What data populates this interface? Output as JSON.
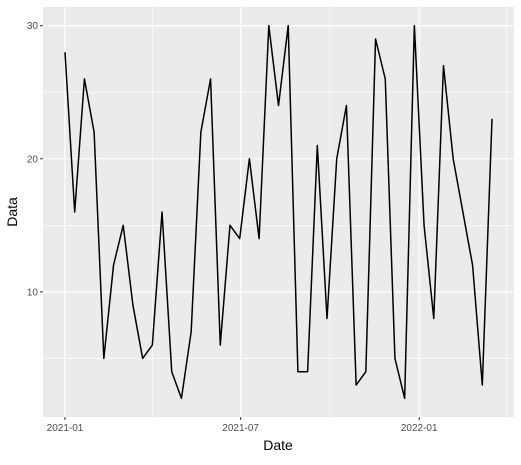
{
  "chart_data": {
    "type": "line",
    "title": "",
    "xlabel": "Date",
    "ylabel": "Data",
    "x_tick_labels": [
      "2021-01",
      "2021-07",
      "2022-01"
    ],
    "y_tick_labels": [
      "10",
      "20",
      "30"
    ],
    "ylim": [
      0.6,
      31.4
    ],
    "grid": true,
    "legend": "none",
    "colors": {
      "panel_background": "#EBEBEB",
      "grid": "#FFFFFF",
      "line": "#000000"
    },
    "series": [
      {
        "values": [
          28,
          16,
          26,
          22,
          5,
          12,
          15,
          9,
          5,
          6,
          16,
          4,
          2,
          7,
          22,
          26,
          6,
          15,
          14,
          20,
          14,
          30,
          24,
          30,
          4,
          4,
          21,
          8,
          20,
          24,
          3,
          4,
          29,
          26,
          5,
          2,
          30,
          15,
          8,
          27,
          20,
          12,
          3,
          23
        ],
        "x": [
          "2021-01-01",
          "2021-01-11",
          "2021-01-21",
          "2021-01-31",
          "2021-02-10",
          "2021-02-20",
          "2021-03-02",
          "2021-03-12",
          "2021-03-22",
          "2021-04-01",
          "2021-04-11",
          "2021-04-21",
          "2021-05-01",
          "2021-05-11",
          "2021-05-21",
          "2021-05-31",
          "2021-06-10",
          "2021-06-20",
          "2021-06-30",
          "2021-07-10",
          "2021-07-20",
          "2021-07-30",
          "2021-08-09",
          "2021-08-19",
          "2021-08-29",
          "2021-09-08",
          "2021-09-18",
          "2021-09-28",
          "2021-10-08",
          "2021-10-18",
          "2021-10-28",
          "2021-11-07",
          "2021-11-17",
          "2021-11-27",
          "2021-12-07",
          "2021-12-17",
          "2021-12-27",
          "2022-01-06",
          "2022-01-16",
          "2022-01-26",
          "2022-02-05",
          "2022-02-25",
          "2022-03-07",
          "2022-03-17"
        ]
      }
    ]
  }
}
